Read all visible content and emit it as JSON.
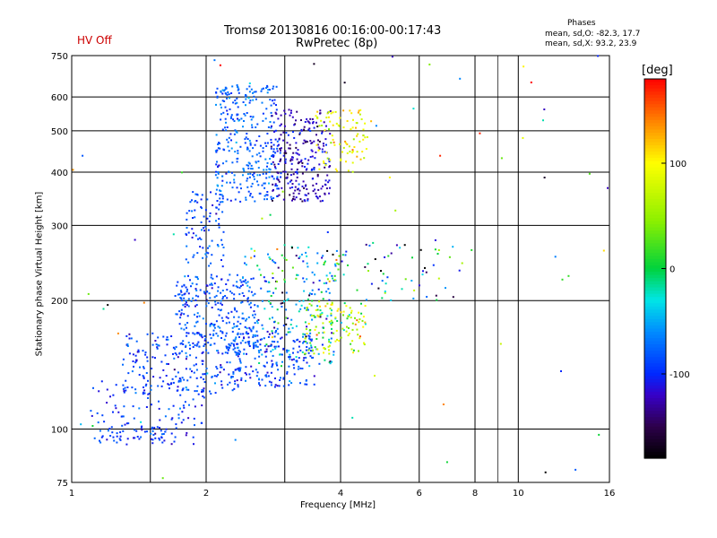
{
  "header": {
    "title_line1": "Tromsø 20130816 00:16:00-00:17:43",
    "title_line2": "RwPretec (8p)",
    "status": "HV Off",
    "status_color": "#cc0000"
  },
  "phase_info": {
    "label": "Phases",
    "line_o": "mean, sd,O: -82.3, 17.7",
    "line_x": "mean, sd,X:  93.2, 23.9"
  },
  "chart_data": {
    "type": "scatter",
    "xlabel": "Frequency [MHz]",
    "ylabel": "Stationary phase Virtual Height [km]",
    "x_scale": "log",
    "y_scale": "log",
    "xlim": [
      1,
      16
    ],
    "ylim": [
      75,
      750
    ],
    "x_ticks": [
      1,
      2,
      4,
      6,
      8,
      10,
      16
    ],
    "x_minor_ticks": [
      9
    ],
    "x_tick_labels": [
      "1",
      "2",
      "4",
      "6",
      "8",
      "10",
      "16"
    ],
    "y_ticks": [
      75,
      100,
      200,
      300,
      400,
      500,
      600,
      750
    ],
    "y_tick_labels": [
      "75",
      "100",
      "200",
      "300",
      "400",
      "500",
      "600",
      "750"
    ],
    "x_grid": [
      1.5,
      2,
      3,
      4,
      6,
      8,
      10
    ],
    "y_grid": [
      100,
      200,
      300,
      400,
      500,
      600
    ],
    "grid": true,
    "colorbar": {
      "label": "[deg]",
      "range": [
        -180,
        180
      ],
      "ticks": [
        100,
        0,
        -100
      ],
      "tick_labels": [
        "100",
        "0",
        "-100"
      ]
    },
    "series": [
      {
        "type": "cluster",
        "fmin": 1.1,
        "fmax": 1.9,
        "hmin": 92,
        "hmax": 100,
        "count": 60,
        "phase_mean": -95,
        "phase_sd": 15
      },
      {
        "type": "cluster",
        "fmin": 1.1,
        "fmax": 2.0,
        "hmin": 100,
        "hmax": 130,
        "count": 90,
        "phase_mean": -95,
        "phase_sd": 15
      },
      {
        "type": "cluster",
        "fmin": 1.3,
        "fmax": 2.4,
        "hmin": 120,
        "hmax": 170,
        "count": 220,
        "phase_mean": -90,
        "phase_sd": 15
      },
      {
        "type": "cluster",
        "fmin": 1.7,
        "fmax": 2.6,
        "hmin": 150,
        "hmax": 230,
        "count": 280,
        "phase_mean": -85,
        "phase_sd": 15
      },
      {
        "type": "cluster",
        "fmin": 1.8,
        "fmax": 2.2,
        "hmin": 240,
        "hmax": 360,
        "count": 90,
        "phase_mean": -85,
        "phase_sd": 15
      },
      {
        "type": "cluster",
        "fmin": 2.3,
        "fmax": 3.5,
        "hmin": 125,
        "hmax": 170,
        "count": 180,
        "phase_mean": -90,
        "phase_sd": 18
      },
      {
        "type": "cluster",
        "fmin": 2.6,
        "fmax": 3.9,
        "hmin": 140,
        "hmax": 230,
        "count": 160,
        "phase_mean": -60,
        "phase_sd": 40
      },
      {
        "type": "cluster",
        "fmin": 3.3,
        "fmax": 4.6,
        "hmin": 150,
        "hmax": 200,
        "count": 120,
        "phase_mean": 60,
        "phase_sd": 40
      },
      {
        "type": "cluster",
        "fmin": 2.4,
        "fmax": 4.2,
        "hmin": 220,
        "hmax": 270,
        "count": 80,
        "phase_mean": -40,
        "phase_sd": 70
      },
      {
        "type": "cluster",
        "fmin": 2.1,
        "fmax": 2.9,
        "hmin": 340,
        "hmax": 640,
        "count": 320,
        "phase_mean": -80,
        "phase_sd": 14
      },
      {
        "type": "cluster",
        "fmin": 2.8,
        "fmax": 3.8,
        "hmin": 340,
        "hmax": 560,
        "count": 260,
        "phase_mean": -120,
        "phase_sd": 18
      },
      {
        "type": "cluster",
        "fmin": 3.5,
        "fmax": 4.6,
        "hmin": 400,
        "hmax": 560,
        "count": 90,
        "phase_mean": 95,
        "phase_sd": 22
      },
      {
        "type": "cluster",
        "fmin": 4.5,
        "fmax": 7.5,
        "hmin": 200,
        "hmax": 280,
        "count": 50,
        "phase_mean": -60,
        "phase_sd": 70
      },
      {
        "type": "cluster",
        "fmin": 1.0,
        "fmax": 16.0,
        "hmin": 75,
        "hmax": 750,
        "count": 70,
        "phase_mean": 0,
        "phase_sd": 110
      }
    ]
  }
}
